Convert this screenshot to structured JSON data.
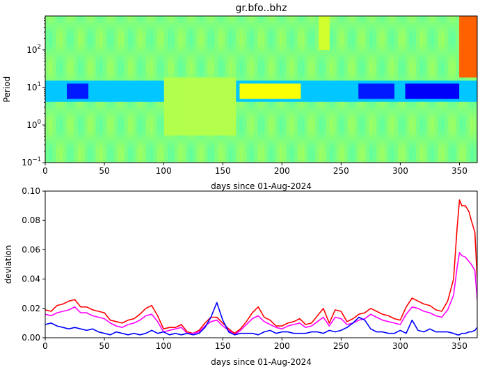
{
  "chart_data": [
    {
      "type": "heatmap",
      "title": "gr.bfo..bhz",
      "xlabel": "days since 01-Aug-2024",
      "ylabel": "Period",
      "xlim": [
        0,
        365
      ],
      "ylim": [
        0.1,
        800
      ],
      "yscale": "log",
      "x_ticks": [
        0,
        50,
        100,
        150,
        200,
        250,
        300,
        350
      ],
      "y_ticks": [
        {
          "value": 0.1,
          "base": "10",
          "exp": "−1"
        },
        {
          "value": 1,
          "base": "10",
          "exp": "0"
        },
        {
          "value": 10,
          "base": "10",
          "exp": "1"
        },
        {
          "value": 100,
          "base": "10",
          "exp": "2"
        }
      ],
      "colormap": "jet",
      "features": [
        {
          "period_band": [
            4,
            15
          ],
          "day_range": [
            0,
            365
          ],
          "level": 0.32,
          "note": "cyan band"
        },
        {
          "period_band": [
            5,
            12
          ],
          "day_range": [
            18,
            35
          ],
          "level": 0.15
        },
        {
          "period_band": [
            5,
            12
          ],
          "day_range": [
            265,
            295
          ],
          "level": 0.15
        },
        {
          "period_band": [
            5,
            12
          ],
          "day_range": [
            305,
            350
          ],
          "level": 0.12
        },
        {
          "period_band": [
            5,
            14
          ],
          "day_range": [
            165,
            215
          ],
          "level": 0.62
        },
        {
          "period_band": [
            0.5,
            20
          ],
          "day_range": [
            100,
            160
          ],
          "level": 0.55
        },
        {
          "period_band": [
            20,
            800
          ],
          "day_range": [
            350,
            365
          ],
          "level": 0.78
        },
        {
          "period_band": [
            100,
            800
          ],
          "day_range": [
            230,
            240
          ],
          "level": 0.58
        }
      ]
    },
    {
      "type": "line",
      "xlabel": "days since 01-Aug-2024",
      "ylabel": "deviation",
      "xlim": [
        0,
        365
      ],
      "ylim": [
        0,
        0.1
      ],
      "x_ticks": [
        0,
        50,
        100,
        150,
        200,
        250,
        300,
        350
      ],
      "y_ticks": [
        "0.00",
        "0.02",
        "0.04",
        "0.06",
        "0.08",
        "0.10"
      ],
      "x": [
        0,
        5,
        10,
        15,
        20,
        25,
        30,
        35,
        40,
        45,
        50,
        55,
        60,
        65,
        70,
        75,
        80,
        85,
        90,
        95,
        100,
        105,
        110,
        115,
        120,
        125,
        130,
        135,
        140,
        145,
        150,
        155,
        160,
        165,
        170,
        175,
        180,
        185,
        190,
        195,
        200,
        205,
        210,
        215,
        220,
        225,
        230,
        235,
        240,
        245,
        250,
        255,
        260,
        265,
        270,
        275,
        280,
        285,
        290,
        295,
        300,
        305,
        310,
        315,
        320,
        325,
        330,
        335,
        340,
        345,
        348,
        350,
        352,
        355,
        358,
        360,
        363,
        365
      ],
      "series": [
        {
          "color": "#ff0000",
          "values": [
            0.019,
            0.018,
            0.022,
            0.023,
            0.025,
            0.026,
            0.021,
            0.021,
            0.019,
            0.018,
            0.017,
            0.012,
            0.011,
            0.01,
            0.012,
            0.013,
            0.016,
            0.02,
            0.022,
            0.015,
            0.006,
            0.007,
            0.007,
            0.009,
            0.004,
            0.003,
            0.005,
            0.01,
            0.014,
            0.014,
            0.01,
            0.006,
            0.003,
            0.006,
            0.011,
            0.017,
            0.021,
            0.014,
            0.012,
            0.008,
            0.008,
            0.01,
            0.011,
            0.013,
            0.009,
            0.01,
            0.015,
            0.02,
            0.01,
            0.019,
            0.018,
            0.011,
            0.013,
            0.016,
            0.017,
            0.02,
            0.018,
            0.016,
            0.015,
            0.013,
            0.012,
            0.021,
            0.027,
            0.025,
            0.023,
            0.022,
            0.019,
            0.018,
            0.025,
            0.04,
            0.075,
            0.094,
            0.09,
            0.09,
            0.086,
            0.08,
            0.072,
            0.04
          ]
        },
        {
          "color": "#ff00ff",
          "values": [
            0.016,
            0.015,
            0.017,
            0.018,
            0.019,
            0.021,
            0.017,
            0.017,
            0.015,
            0.014,
            0.013,
            0.01,
            0.008,
            0.007,
            0.009,
            0.01,
            0.012,
            0.015,
            0.016,
            0.011,
            0.004,
            0.005,
            0.006,
            0.007,
            0.003,
            0.003,
            0.004,
            0.008,
            0.011,
            0.012,
            0.008,
            0.005,
            0.002,
            0.005,
            0.009,
            0.013,
            0.015,
            0.011,
            0.009,
            0.007,
            0.006,
            0.008,
            0.009,
            0.01,
            0.007,
            0.008,
            0.011,
            0.014,
            0.008,
            0.014,
            0.013,
            0.009,
            0.01,
            0.012,
            0.013,
            0.016,
            0.014,
            0.012,
            0.011,
            0.01,
            0.009,
            0.016,
            0.021,
            0.02,
            0.018,
            0.017,
            0.015,
            0.014,
            0.019,
            0.029,
            0.048,
            0.058,
            0.056,
            0.055,
            0.052,
            0.05,
            0.046,
            0.026
          ]
        },
        {
          "color": "#0000ff",
          "values": [
            0.009,
            0.01,
            0.008,
            0.007,
            0.006,
            0.007,
            0.006,
            0.005,
            0.006,
            0.004,
            0.003,
            0.002,
            0.004,
            0.003,
            0.002,
            0.003,
            0.002,
            0.003,
            0.005,
            0.003,
            0.004,
            0.002,
            0.003,
            0.002,
            0.003,
            0.002,
            0.003,
            0.007,
            0.014,
            0.024,
            0.012,
            0.004,
            0.002,
            0.003,
            0.003,
            0.003,
            0.002,
            0.004,
            0.005,
            0.003,
            0.004,
            0.004,
            0.003,
            0.003,
            0.003,
            0.004,
            0.004,
            0.003,
            0.005,
            0.004,
            0.005,
            0.007,
            0.01,
            0.014,
            0.012,
            0.006,
            0.004,
            0.004,
            0.003,
            0.003,
            0.005,
            0.003,
            0.012,
            0.005,
            0.004,
            0.006,
            0.004,
            0.004,
            0.004,
            0.003,
            0.002,
            0.002,
            0.003,
            0.003,
            0.004,
            0.004,
            0.005,
            0.007
          ]
        }
      ]
    }
  ]
}
